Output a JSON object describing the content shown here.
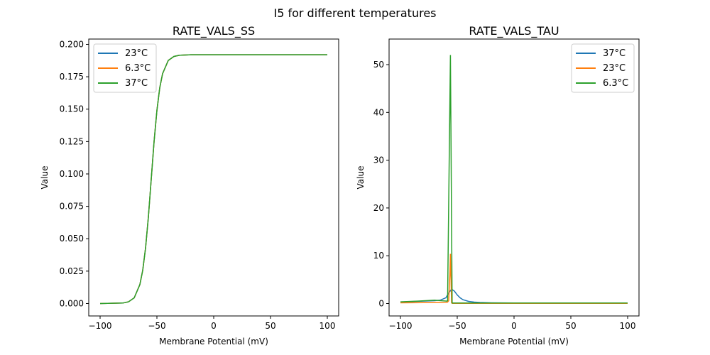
{
  "suptitle": "I5 for different temperatures",
  "chart_data": [
    {
      "type": "line",
      "title": "RATE_VALS_SS",
      "xlabel": "Membrane Potential (mV)",
      "ylabel": "Value",
      "xlim": [
        -110,
        110
      ],
      "ylim": [
        -0.0096,
        0.2041
      ],
      "xticks": [
        -100,
        -50,
        0,
        50,
        100
      ],
      "xtick_labels": [
        "−100",
        "−50",
        "0",
        "50",
        "100"
      ],
      "yticks": [
        0,
        0.025,
        0.05,
        0.075,
        0.1,
        0.125,
        0.15,
        0.175,
        0.2
      ],
      "ytick_labels": [
        "0.000",
        "0.025",
        "0.050",
        "0.075",
        "0.100",
        "0.125",
        "0.150",
        "0.175",
        "0.200"
      ],
      "legend": "top-left",
      "grid": false,
      "series": [
        {
          "name": "23°C",
          "color": "#1f77b4",
          "x": [
            -100,
            -80,
            -75,
            -70,
            -65,
            -62.5,
            -60,
            -57.5,
            -55,
            -52.5,
            -50,
            -47.5,
            -45,
            -40,
            -35,
            -30,
            -20,
            0,
            50,
            100
          ],
          "y": [
            0,
            0.0004,
            0.0013,
            0.0044,
            0.0146,
            0.0255,
            0.0428,
            0.0669,
            0.096,
            0.125,
            0.149,
            0.1665,
            0.1774,
            0.1876,
            0.1907,
            0.1916,
            0.192,
            0.192,
            0.192,
            0.192
          ]
        },
        {
          "name": "6.3°C",
          "color": "#ff7f0e",
          "x": [
            -100,
            -80,
            -75,
            -70,
            -65,
            -62.5,
            -60,
            -57.5,
            -55,
            -52.5,
            -50,
            -47.5,
            -45,
            -40,
            -35,
            -30,
            -20,
            0,
            50,
            100
          ],
          "y": [
            0,
            0.0004,
            0.0013,
            0.0044,
            0.0146,
            0.0255,
            0.0428,
            0.0669,
            0.096,
            0.125,
            0.149,
            0.1665,
            0.1774,
            0.1876,
            0.1907,
            0.1916,
            0.192,
            0.192,
            0.192,
            0.192
          ]
        },
        {
          "name": "37°C",
          "color": "#2ca02c",
          "x": [
            -100,
            -80,
            -75,
            -70,
            -65,
            -62.5,
            -60,
            -57.5,
            -55,
            -52.5,
            -50,
            -47.5,
            -45,
            -40,
            -35,
            -30,
            -20,
            0,
            50,
            100
          ],
          "y": [
            0,
            0.0004,
            0.0013,
            0.0044,
            0.0146,
            0.0255,
            0.0428,
            0.0669,
            0.096,
            0.125,
            0.149,
            0.1665,
            0.1774,
            0.1876,
            0.1907,
            0.1916,
            0.192,
            0.192,
            0.192,
            0.192
          ]
        }
      ]
    },
    {
      "type": "line",
      "title": "RATE_VALS_TAU",
      "xlabel": "Membrane Potential (mV)",
      "ylabel": "Value",
      "xlim": [
        -110,
        110
      ],
      "ylim": [
        -2.6,
        55.35
      ],
      "xticks": [
        -100,
        -50,
        0,
        50,
        100
      ],
      "xtick_labels": [
        "−100",
        "−50",
        "0",
        "50",
        "100"
      ],
      "yticks": [
        0,
        10,
        20,
        30,
        40,
        50
      ],
      "ytick_labels": [
        "0",
        "10",
        "20",
        "30",
        "40",
        "50"
      ],
      "legend": "top-right",
      "grid": false,
      "series": [
        {
          "name": "37°C",
          "color": "#1f77b4",
          "x": [
            -100,
            -90,
            -80,
            -70,
            -65,
            -60,
            -57.5,
            -55,
            -52.5,
            -50,
            -47.5,
            -45,
            -40,
            -35,
            -30,
            -20,
            0,
            50,
            100
          ],
          "y": [
            0.3,
            0.4,
            0.5,
            0.6,
            0.7,
            1.2,
            2.2,
            3.0,
            2.6,
            1.8,
            1.2,
            0.8,
            0.45,
            0.3,
            0.22,
            0.15,
            0.1,
            0.08,
            0.08
          ]
        },
        {
          "name": "23°C",
          "color": "#ff7f0e",
          "x": [
            -100,
            -80,
            -60,
            -58.5,
            -57.5,
            -56.5,
            -56,
            -55.5,
            -55,
            -54.5,
            -50,
            0,
            100
          ],
          "y": [
            0.15,
            0.2,
            0.25,
            0.3,
            0.6,
            6,
            10.4,
            5,
            0.2,
            0.05,
            0.05,
            0.05,
            0.05
          ]
        },
        {
          "name": "6.3°C",
          "color": "#2ca02c",
          "x": [
            -100,
            -85,
            -70,
            -62,
            -59,
            -58.5,
            -56,
            -54.5,
            -50,
            0,
            100
          ],
          "y": [
            0.35,
            0.5,
            0.7,
            0.55,
            0.5,
            0.6,
            52,
            0.1,
            0.1,
            0.1,
            0.1
          ]
        }
      ]
    }
  ]
}
